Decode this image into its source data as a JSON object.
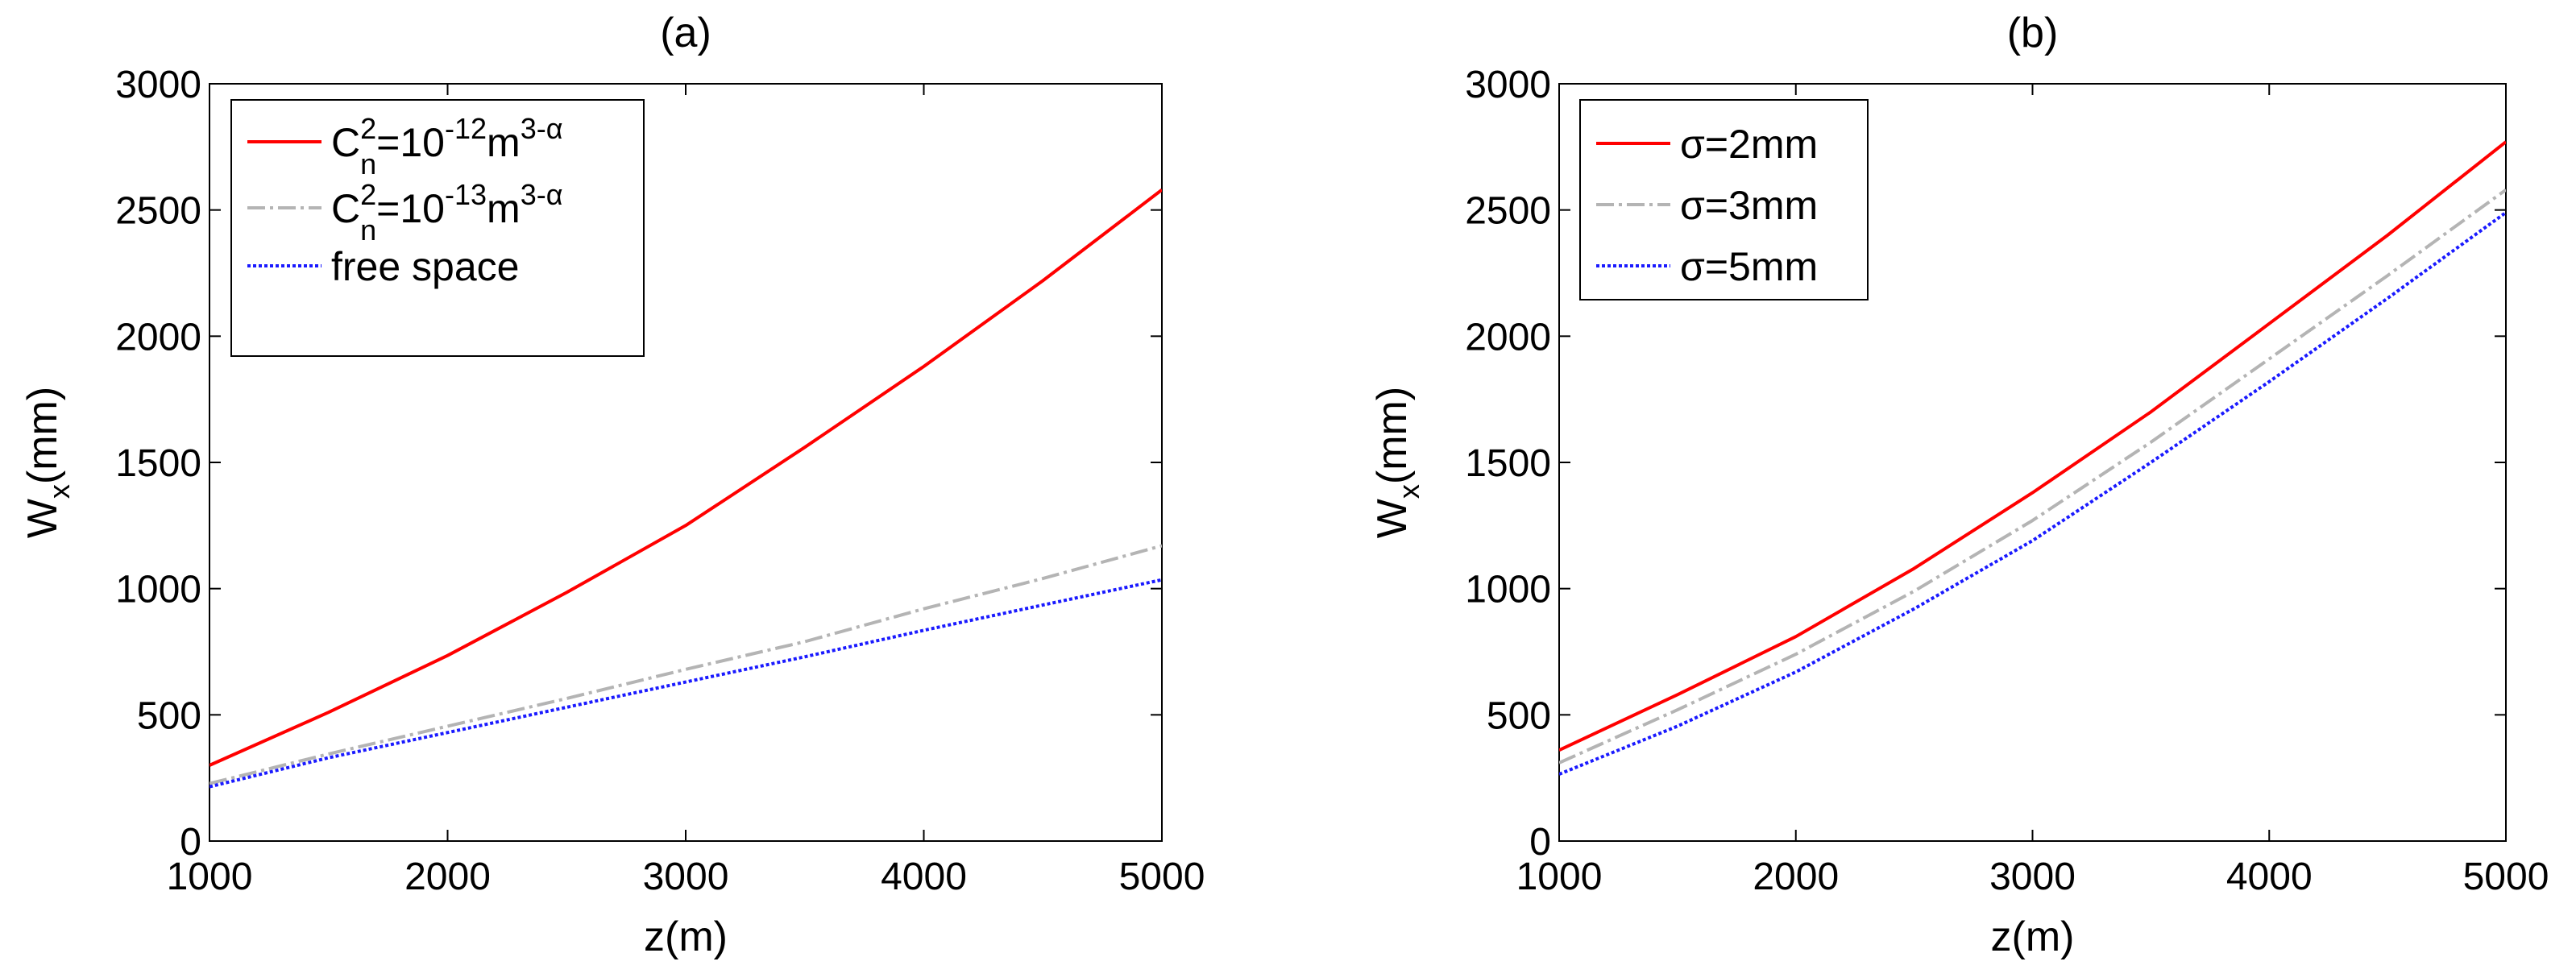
{
  "chart_data": [
    {
      "type": "line",
      "title": "(a)",
      "xlabel": {
        "main": "z(m)"
      },
      "ylabel": {
        "main": "W",
        "sub": "x",
        "rest": "(mm)"
      },
      "xlim": [
        1000,
        5000
      ],
      "ylim": [
        0,
        3000
      ],
      "xticks": [
        "1000",
        "2000",
        "3000",
        "4000",
        "5000"
      ],
      "yticks": [
        "0",
        "500",
        "1000",
        "1500",
        "2000",
        "2500",
        "3000"
      ],
      "grid": false,
      "legend_position": "top-left",
      "series": [
        {
          "legend": {
            "C": "C",
            "sup1": "2",
            "sub1": "n",
            "mid": "=10",
            "sup2": "-12",
            "m": "m",
            "sup3": "3-α"
          },
          "color": "#ff0000",
          "style": "solid",
          "x": [
            1000,
            1500,
            2000,
            2500,
            3000,
            3500,
            4000,
            4500,
            5000
          ],
          "y": [
            300,
            510,
            735,
            985,
            1250,
            1560,
            1880,
            2220,
            2580
          ]
        },
        {
          "legend": {
            "C": "C",
            "sup1": "2",
            "sub1": "n",
            "mid": "=10",
            "sup2": "-13",
            "m": "m",
            "sup3": "3-α"
          },
          "color": "#b4b4b4",
          "style": "dashdot",
          "x": [
            1000,
            1500,
            2000,
            2500,
            3000,
            3500,
            4000,
            4500,
            5000
          ],
          "y": [
            228,
            345,
            455,
            565,
            680,
            790,
            920,
            1040,
            1170
          ]
        },
        {
          "legend": {
            "text": "free space"
          },
          "color": "#1a1aff",
          "style": "dotted",
          "x": [
            1000,
            1500,
            2000,
            2500,
            3000,
            3500,
            4000,
            4500,
            5000
          ],
          "y": [
            215,
            330,
            430,
            530,
            630,
            730,
            835,
            935,
            1035
          ]
        }
      ]
    },
    {
      "type": "line",
      "title": "(b)",
      "xlabel": {
        "main": "z(m)"
      },
      "ylabel": {
        "main": "W",
        "sub": "x",
        "rest": "(mm)"
      },
      "xlim": [
        1000,
        5000
      ],
      "ylim": [
        0,
        3000
      ],
      "xticks": [
        "1000",
        "2000",
        "3000",
        "4000",
        "5000"
      ],
      "yticks": [
        "0",
        "500",
        "1000",
        "1500",
        "2000",
        "2500",
        "3000"
      ],
      "grid": false,
      "legend_position": "top-left",
      "series": [
        {
          "legend": {
            "text": "σ=2mm"
          },
          "color": "#ff0000",
          "style": "solid",
          "x": [
            1000,
            1500,
            2000,
            2500,
            3000,
            3500,
            4000,
            4500,
            5000
          ],
          "y": [
            360,
            580,
            810,
            1080,
            1380,
            1700,
            2050,
            2400,
            2770
          ]
        },
        {
          "legend": {
            "text": "σ=3mm"
          },
          "color": "#b4b4b4",
          "style": "dashdot",
          "x": [
            1000,
            1500,
            2000,
            2500,
            3000,
            3500,
            4000,
            4500,
            5000
          ],
          "y": [
            310,
            520,
            740,
            990,
            1270,
            1580,
            1910,
            2240,
            2580
          ]
        },
        {
          "legend": {
            "text": "σ=5mm"
          },
          "color": "#1a1aff",
          "style": "dotted",
          "x": [
            1000,
            1500,
            2000,
            2500,
            3000,
            3500,
            4000,
            4500,
            5000
          ],
          "y": [
            265,
            455,
            670,
            920,
            1190,
            1500,
            1820,
            2150,
            2490
          ]
        }
      ]
    }
  ]
}
